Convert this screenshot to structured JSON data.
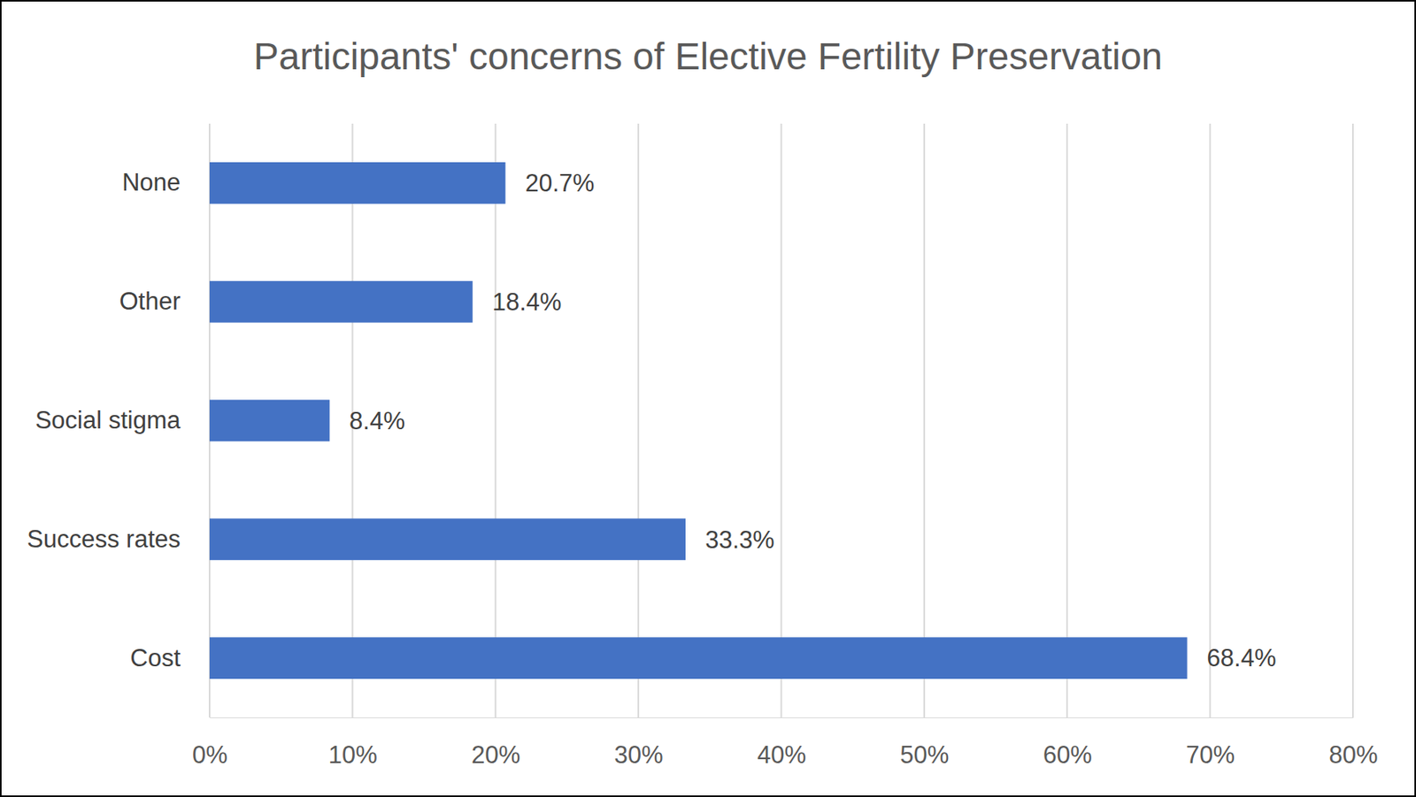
{
  "chart_data": {
    "type": "bar",
    "orientation": "horizontal",
    "title": "Participants' concerns of Elective Fertility Preservation",
    "categories": [
      "Cost",
      "Success rates",
      "Social stigma",
      "Other",
      "None"
    ],
    "values": [
      68.4,
      33.3,
      8.4,
      18.4,
      20.7
    ],
    "value_labels": [
      "68.4%",
      "33.3%",
      "8.4%",
      "18.4%",
      "20.7%"
    ],
    "data_labels": true,
    "color": "#4472c4",
    "xlim": [
      0,
      80
    ],
    "xticks": [
      {
        "value": 0,
        "label": "0%"
      },
      {
        "value": 10,
        "label": "10%"
      },
      {
        "value": 20,
        "label": "20%"
      },
      {
        "value": 30,
        "label": "30%"
      },
      {
        "value": 40,
        "label": "40%"
      },
      {
        "value": 50,
        "label": "50%"
      },
      {
        "value": 60,
        "label": "60%"
      },
      {
        "value": 70,
        "label": "70%"
      },
      {
        "value": 80,
        "label": "80%"
      }
    ],
    "grid": true
  }
}
